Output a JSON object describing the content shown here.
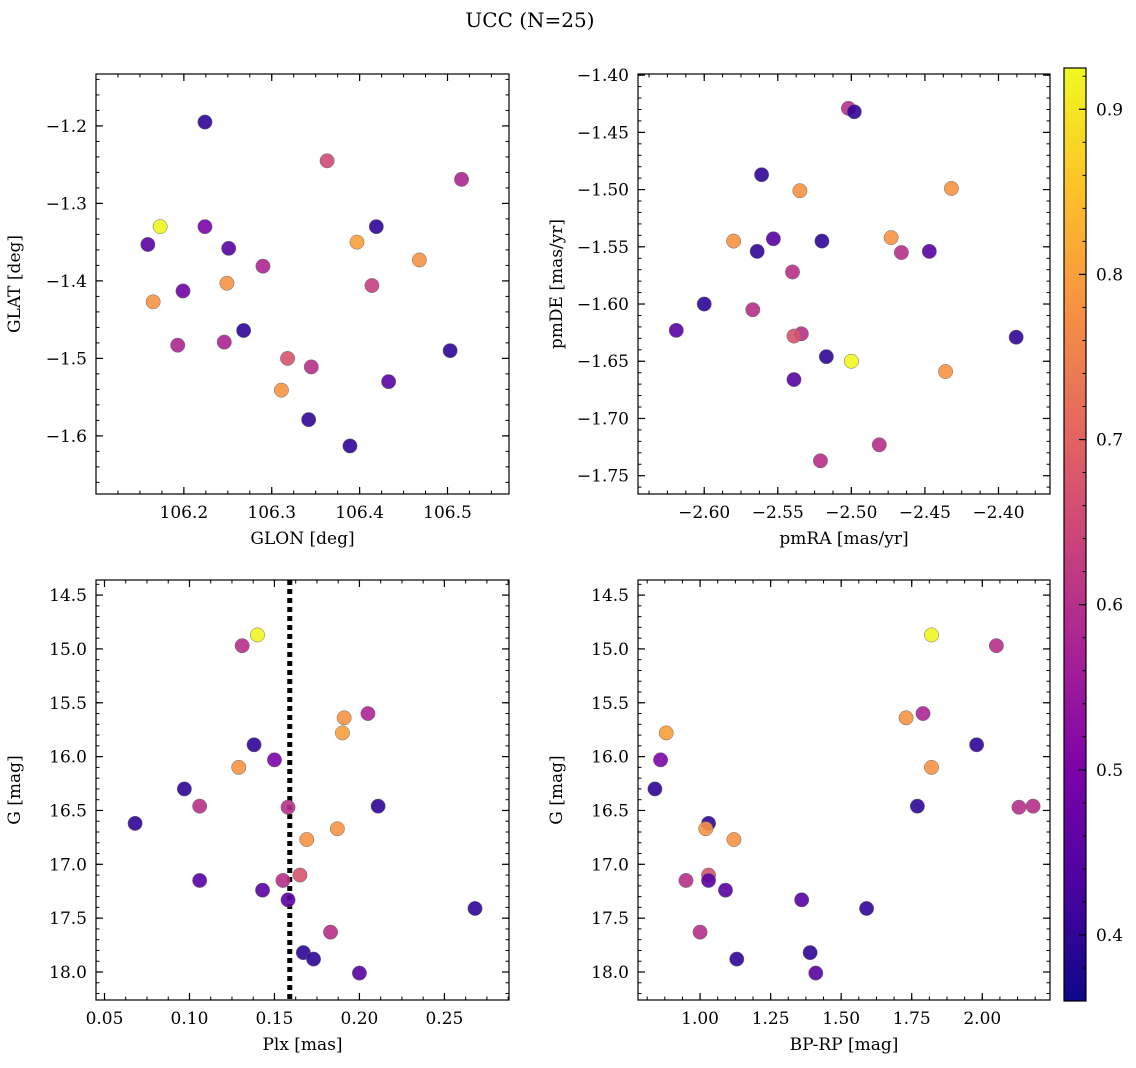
{
  "figure": {
    "title": "UCC (N=25)",
    "colormap": "plasma",
    "colorbar": {
      "range": [
        0.36,
        0.925
      ],
      "ticks": [
        "0.4",
        "0.5",
        "0.6",
        "0.7",
        "0.8",
        "0.9"
      ],
      "tick_values": [
        0.4,
        0.5,
        0.6,
        0.7,
        0.8,
        0.9
      ]
    }
  },
  "chart_data": [
    {
      "type": "scatter",
      "xlabel": "GLON [deg]",
      "ylabel": "GLAT [deg]",
      "xlim": [
        106.1,
        106.57
      ],
      "ylim": [
        -1.675,
        -1.133
      ],
      "yinvert": false,
      "xticks": [
        106.2,
        106.3,
        106.4,
        106.5
      ],
      "xticklabels": [
        "106.2",
        "106.3",
        "106.4",
        "106.5"
      ],
      "yticks": [
        -1.2,
        -1.3,
        -1.4,
        -1.5,
        -1.6
      ],
      "yticklabels": [
        "−1.2",
        "−1.3",
        "−1.4",
        "−1.5",
        "−1.6"
      ],
      "points": [
        {
          "x": 106.224,
          "y": -1.195,
          "c": 0.4
        },
        {
          "x": 106.363,
          "y": -1.245,
          "c": 0.65
        },
        {
          "x": 106.516,
          "y": -1.269,
          "c": 0.58
        },
        {
          "x": 106.173,
          "y": -1.33,
          "c": 0.92
        },
        {
          "x": 106.224,
          "y": -1.33,
          "c": 0.5
        },
        {
          "x": 106.419,
          "y": -1.33,
          "c": 0.4
        },
        {
          "x": 106.159,
          "y": -1.353,
          "c": 0.45
        },
        {
          "x": 106.251,
          "y": -1.358,
          "c": 0.45
        },
        {
          "x": 106.397,
          "y": -1.35,
          "c": 0.8
        },
        {
          "x": 106.468,
          "y": -1.373,
          "c": 0.78
        },
        {
          "x": 106.29,
          "y": -1.381,
          "c": 0.58
        },
        {
          "x": 106.249,
          "y": -1.403,
          "c": 0.78
        },
        {
          "x": 106.414,
          "y": -1.406,
          "c": 0.63
        },
        {
          "x": 106.199,
          "y": -1.413,
          "c": 0.48
        },
        {
          "x": 106.165,
          "y": -1.427,
          "c": 0.78
        },
        {
          "x": 106.268,
          "y": -1.464,
          "c": 0.4
        },
        {
          "x": 106.193,
          "y": -1.483,
          "c": 0.58
        },
        {
          "x": 106.246,
          "y": -1.479,
          "c": 0.58
        },
        {
          "x": 106.503,
          "y": -1.49,
          "c": 0.4
        },
        {
          "x": 106.318,
          "y": -1.5,
          "c": 0.67
        },
        {
          "x": 106.345,
          "y": -1.511,
          "c": 0.6
        },
        {
          "x": 106.433,
          "y": -1.53,
          "c": 0.45
        },
        {
          "x": 106.311,
          "y": -1.541,
          "c": 0.78
        },
        {
          "x": 106.342,
          "y": -1.579,
          "c": 0.4
        },
        {
          "x": 106.389,
          "y": -1.613,
          "c": 0.4
        }
      ]
    },
    {
      "type": "scatter",
      "xlabel": "pmRA [mas/yr]",
      "ylabel": "pmDE [mas/yr]",
      "xlim": [
        -2.645,
        -2.365
      ],
      "ylim": [
        -1.766,
        -1.399
      ],
      "yinvert": false,
      "xticks": [
        -2.6,
        -2.55,
        -2.5,
        -2.45,
        -2.4
      ],
      "xticklabels": [
        "−2.60",
        "−2.55",
        "−2.50",
        "−2.45",
        "−2.40"
      ],
      "yticks": [
        -1.4,
        -1.45,
        -1.5,
        -1.55,
        -1.6,
        -1.65,
        -1.7,
        -1.75
      ],
      "yticklabels": [
        "−1.40",
        "−1.45",
        "−1.50",
        "−1.55",
        "−1.60",
        "−1.65",
        "−1.70",
        "−1.75"
      ],
      "points": [
        {
          "x": -2.502,
          "y": -1.429,
          "c": 0.6
        },
        {
          "x": -2.498,
          "y": -1.432,
          "c": 0.4
        },
        {
          "x": -2.561,
          "y": -1.487,
          "c": 0.4
        },
        {
          "x": -2.535,
          "y": -1.501,
          "c": 0.78
        },
        {
          "x": -2.432,
          "y": -1.499,
          "c": 0.78
        },
        {
          "x": -2.58,
          "y": -1.545,
          "c": 0.78
        },
        {
          "x": -2.553,
          "y": -1.543,
          "c": 0.45
        },
        {
          "x": -2.52,
          "y": -1.545,
          "c": 0.4
        },
        {
          "x": -2.473,
          "y": -1.542,
          "c": 0.78
        },
        {
          "x": -2.564,
          "y": -1.554,
          "c": 0.4
        },
        {
          "x": -2.466,
          "y": -1.555,
          "c": 0.6
        },
        {
          "x": -2.447,
          "y": -1.554,
          "c": 0.45
        },
        {
          "x": -2.54,
          "y": -1.572,
          "c": 0.6
        },
        {
          "x": -2.6,
          "y": -1.6,
          "c": 0.4
        },
        {
          "x": -2.567,
          "y": -1.605,
          "c": 0.6
        },
        {
          "x": -2.619,
          "y": -1.623,
          "c": 0.45
        },
        {
          "x": -2.534,
          "y": -1.626,
          "c": 0.6
        },
        {
          "x": -2.539,
          "y": -1.628,
          "c": 0.67
        },
        {
          "x": -2.388,
          "y": -1.629,
          "c": 0.4
        },
        {
          "x": -2.517,
          "y": -1.646,
          "c": 0.4
        },
        {
          "x": -2.5,
          "y": -1.65,
          "c": 0.92
        },
        {
          "x": -2.539,
          "y": -1.666,
          "c": 0.45
        },
        {
          "x": -2.436,
          "y": -1.659,
          "c": 0.78
        },
        {
          "x": -2.481,
          "y": -1.723,
          "c": 0.6
        },
        {
          "x": -2.521,
          "y": -1.737,
          "c": 0.6
        }
      ]
    },
    {
      "type": "scatter",
      "xlabel": "Plx [mas]",
      "ylabel": "G [mag]",
      "xlim": [
        0.045,
        0.288
      ],
      "ylim": [
        14.36,
        18.26
      ],
      "yinvert": true,
      "xticks": [
        0.05,
        0.1,
        0.15,
        0.2,
        0.25
      ],
      "xticklabels": [
        "0.05",
        "0.10",
        "0.15",
        "0.20",
        "0.25"
      ],
      "yticks": [
        14.5,
        15.0,
        15.5,
        16.0,
        16.5,
        17.0,
        17.5,
        18.0
      ],
      "yticklabels": [
        "14.5",
        "15.0",
        "15.5",
        "16.0",
        "16.5",
        "17.0",
        "17.5",
        "18.0"
      ],
      "vline": 0.159,
      "points": [
        {
          "x": 0.14,
          "y": 14.87,
          "c": 0.92
        },
        {
          "x": 0.131,
          "y": 14.97,
          "c": 0.6
        },
        {
          "x": 0.205,
          "y": 15.6,
          "c": 0.58
        },
        {
          "x": 0.191,
          "y": 15.64,
          "c": 0.78
        },
        {
          "x": 0.19,
          "y": 15.78,
          "c": 0.8
        },
        {
          "x": 0.138,
          "y": 15.89,
          "c": 0.4
        },
        {
          "x": 0.15,
          "y": 16.03,
          "c": 0.5
        },
        {
          "x": 0.129,
          "y": 16.1,
          "c": 0.78
        },
        {
          "x": 0.097,
          "y": 16.3,
          "c": 0.4
        },
        {
          "x": 0.106,
          "y": 16.46,
          "c": 0.6
        },
        {
          "x": 0.158,
          "y": 16.47,
          "c": 0.6
        },
        {
          "x": 0.211,
          "y": 16.46,
          "c": 0.4
        },
        {
          "x": 0.068,
          "y": 16.62,
          "c": 0.4
        },
        {
          "x": 0.187,
          "y": 16.67,
          "c": 0.78
        },
        {
          "x": 0.169,
          "y": 16.77,
          "c": 0.78
        },
        {
          "x": 0.165,
          "y": 17.1,
          "c": 0.67
        },
        {
          "x": 0.106,
          "y": 17.15,
          "c": 0.45
        },
        {
          "x": 0.155,
          "y": 17.15,
          "c": 0.6
        },
        {
          "x": 0.143,
          "y": 17.24,
          "c": 0.45
        },
        {
          "x": 0.158,
          "y": 17.33,
          "c": 0.45
        },
        {
          "x": 0.268,
          "y": 17.41,
          "c": 0.4
        },
        {
          "x": 0.183,
          "y": 17.63,
          "c": 0.6
        },
        {
          "x": 0.167,
          "y": 17.82,
          "c": 0.4
        },
        {
          "x": 0.173,
          "y": 17.88,
          "c": 0.4
        },
        {
          "x": 0.2,
          "y": 18.01,
          "c": 0.45
        }
      ]
    },
    {
      "type": "scatter",
      "xlabel": "BP-RP [mag]",
      "ylabel": "G [mag]",
      "xlim": [
        0.78,
        2.24
      ],
      "ylim": [
        14.36,
        18.26
      ],
      "yinvert": true,
      "xticks": [
        1.0,
        1.25,
        1.5,
        1.75,
        2.0
      ],
      "xticklabels": [
        "1.00",
        "1.25",
        "1.50",
        "1.75",
        "2.00"
      ],
      "yticks": [
        14.5,
        15.0,
        15.5,
        16.0,
        16.5,
        17.0,
        17.5,
        18.0
      ],
      "yticklabels": [
        "14.5",
        "15.0",
        "15.5",
        "16.0",
        "16.5",
        "17.0",
        "17.5",
        "18.0"
      ],
      "points": [
        {
          "x": 1.82,
          "y": 14.87,
          "c": 0.92
        },
        {
          "x": 2.05,
          "y": 14.97,
          "c": 0.6
        },
        {
          "x": 1.79,
          "y": 15.6,
          "c": 0.58
        },
        {
          "x": 1.73,
          "y": 15.64,
          "c": 0.78
        },
        {
          "x": 0.88,
          "y": 15.78,
          "c": 0.8
        },
        {
          "x": 1.98,
          "y": 15.89,
          "c": 0.4
        },
        {
          "x": 0.86,
          "y": 16.03,
          "c": 0.5
        },
        {
          "x": 1.82,
          "y": 16.1,
          "c": 0.78
        },
        {
          "x": 0.84,
          "y": 16.3,
          "c": 0.4
        },
        {
          "x": 1.77,
          "y": 16.46,
          "c": 0.4
        },
        {
          "x": 2.13,
          "y": 16.47,
          "c": 0.6
        },
        {
          "x": 2.18,
          "y": 16.46,
          "c": 0.6
        },
        {
          "x": 1.03,
          "y": 16.62,
          "c": 0.4
        },
        {
          "x": 1.02,
          "y": 16.67,
          "c": 0.78
        },
        {
          "x": 1.12,
          "y": 16.77,
          "c": 0.78
        },
        {
          "x": 1.03,
          "y": 17.1,
          "c": 0.67
        },
        {
          "x": 0.95,
          "y": 17.15,
          "c": 0.6
        },
        {
          "x": 1.03,
          "y": 17.15,
          "c": 0.45
        },
        {
          "x": 1.09,
          "y": 17.24,
          "c": 0.45
        },
        {
          "x": 1.36,
          "y": 17.33,
          "c": 0.45
        },
        {
          "x": 1.59,
          "y": 17.41,
          "c": 0.4
        },
        {
          "x": 1.0,
          "y": 17.63,
          "c": 0.6
        },
        {
          "x": 1.39,
          "y": 17.82,
          "c": 0.4
        },
        {
          "x": 1.13,
          "y": 17.88,
          "c": 0.4
        },
        {
          "x": 1.41,
          "y": 18.01,
          "c": 0.45
        }
      ]
    }
  ]
}
